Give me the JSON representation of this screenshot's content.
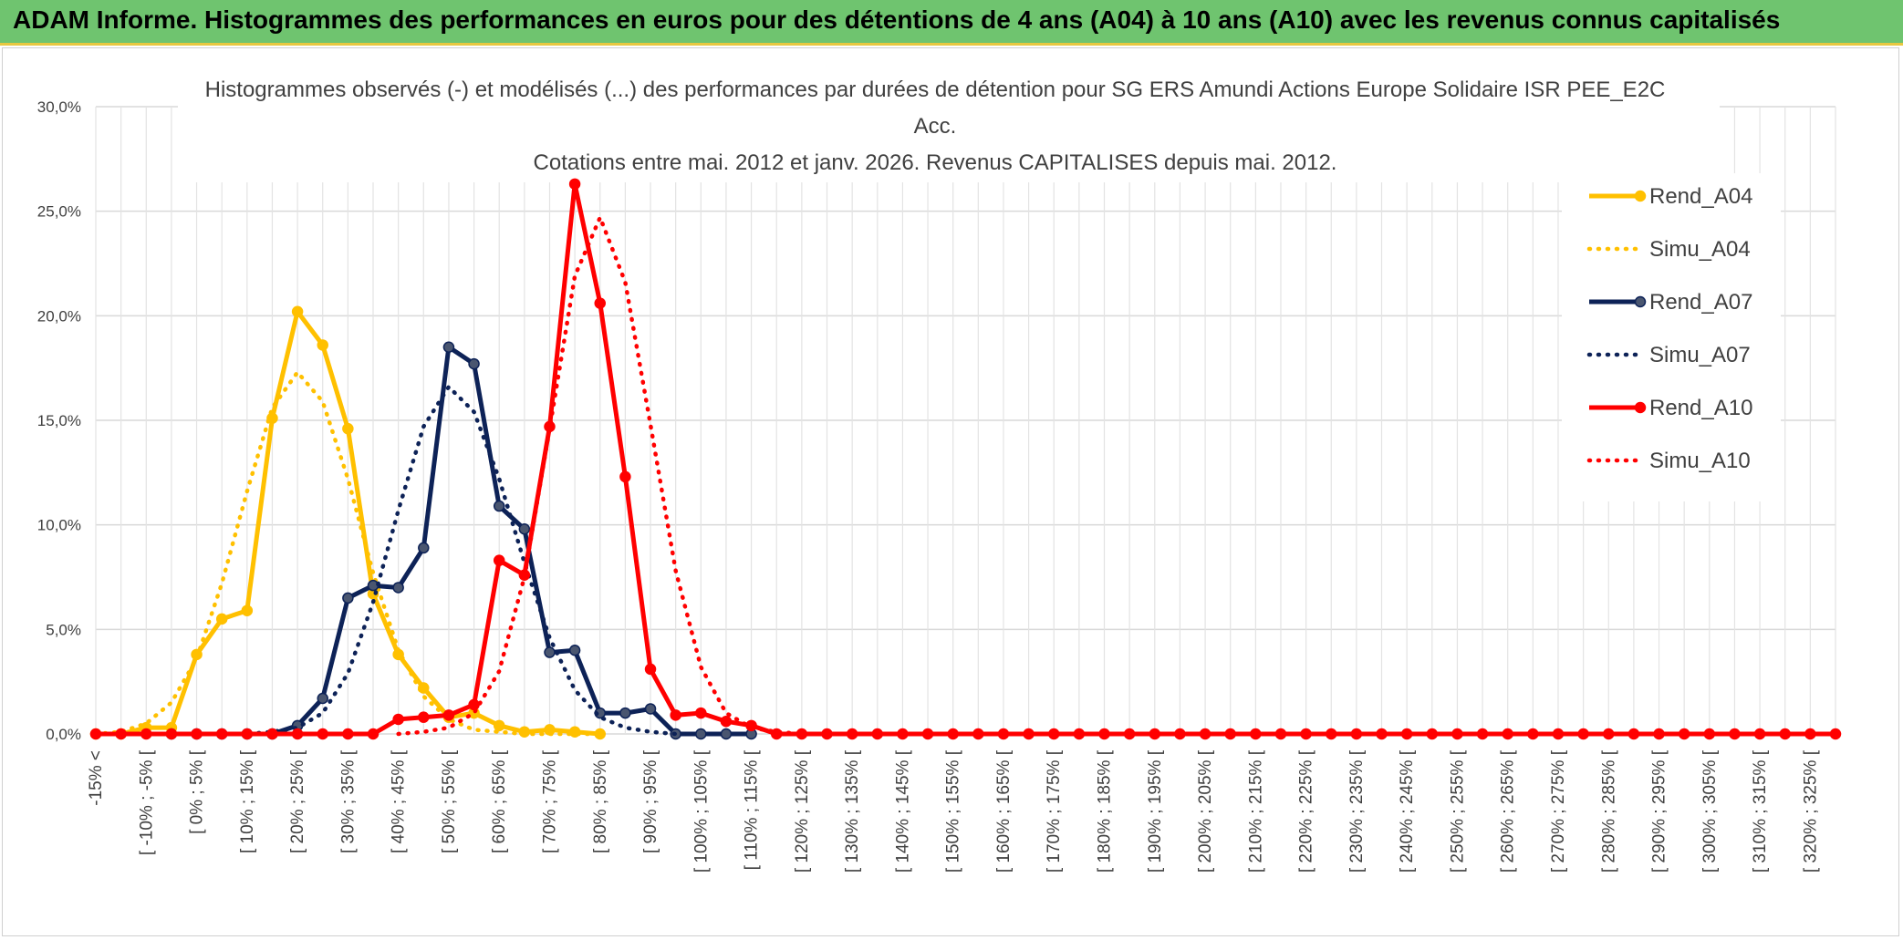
{
  "header": {
    "title": "ADAM Informe. Histogrammes des performances en euros pour des détentions de 4 ans (A04) à 10 ans (A10) avec les revenus connus capitalisés"
  },
  "chart_data": {
    "type": "line",
    "title_lines": [
      "Histogrammes observés (-) et modélisés (...) des performances par durées de détention pour SG ERS Amundi Actions Europe Solidaire ISR PEE_E2C",
      "Acc.",
      "Cotations entre mai. 2012 et janv. 2026. Revenus CAPITALISES depuis mai. 2012."
    ],
    "xlabel": "",
    "ylabel": "",
    "ylim": [
      0,
      30
    ],
    "y_ticks": [
      "0,0%",
      "5,0%",
      "10,0%",
      "15,0%",
      "20,0%",
      "25,0%",
      "30,0%"
    ],
    "legend_position": "top-right",
    "category_labels": [
      "-15% <",
      "[ -10% ; -5% [",
      "[ 0% ; 5% [",
      "[ 10% ; 15% [",
      "[ 20% ; 25% [",
      "[ 30% ; 35% [",
      "[ 40% ; 45% [",
      "[ 50% ; 55% [",
      "[ 60% ; 65% [",
      "[ 70% ; 75% [",
      "[ 80% ; 85% [",
      "[ 90% ; 95% [",
      "[ 100% ; 105% [",
      "[ 110% ; 115% [",
      "[ 120% ; 125% [",
      "[ 130% ; 135% [",
      "[ 140% ; 145% [",
      "[ 150% ; 155% [",
      "[ 160% ; 165% [",
      "[ 170% ; 175% [",
      "[ 180% ; 185% [",
      "[ 190% ; 195% [",
      "[ 200% ; 205% [",
      "[ 210% ; 215% [",
      "[ 220% ; 225% [",
      "[ 230% ; 235% [",
      "[ 240% ; 245% [",
      "[ 250% ; 255% [",
      "[ 260% ; 265% [",
      "[ 270% ; 275% [",
      "[ 280% ; 285% [",
      "[ 290% ; 295% [",
      "[ 300% ; 305% [",
      "[ 310% ; 315% [",
      "[ 320% ; 325% ["
    ],
    "x_start": -15,
    "x_step": 5,
    "x_count": 70,
    "series": [
      {
        "name": "Rend_A04",
        "style": "solid",
        "color": "#ffc000",
        "points": [
          [
            -15,
            0
          ],
          [
            -10,
            0
          ],
          [
            -5,
            0.3
          ],
          [
            0,
            0.3
          ],
          [
            5,
            3.8
          ],
          [
            10,
            5.5
          ],
          [
            15,
            5.9
          ],
          [
            20,
            15.1
          ],
          [
            25,
            20.2
          ],
          [
            30,
            18.6
          ],
          [
            35,
            14.6
          ],
          [
            40,
            6.7
          ],
          [
            45,
            3.8
          ],
          [
            50,
            2.2
          ],
          [
            55,
            0.8
          ],
          [
            60,
            1.0
          ],
          [
            65,
            0.4
          ],
          [
            70,
            0.1
          ],
          [
            75,
            0.2
          ],
          [
            80,
            0.1
          ],
          [
            85,
            0
          ]
        ]
      },
      {
        "name": "Simu_A04",
        "style": "dotted",
        "color": "#ffc000",
        "points": [
          [
            -15,
            0
          ],
          [
            -10,
            0.1
          ],
          [
            -5,
            0.5
          ],
          [
            0,
            1.5
          ],
          [
            5,
            3.6
          ],
          [
            10,
            7.2
          ],
          [
            15,
            11.6
          ],
          [
            20,
            15.6
          ],
          [
            25,
            17.3
          ],
          [
            30,
            15.9
          ],
          [
            35,
            12.2
          ],
          [
            40,
            7.7
          ],
          [
            45,
            4.0
          ],
          [
            50,
            1.8
          ],
          [
            55,
            0.7
          ],
          [
            60,
            0.2
          ],
          [
            65,
            0.1
          ],
          [
            70,
            0
          ],
          [
            75,
            0
          ],
          [
            80,
            0
          ],
          [
            85,
            0
          ]
        ]
      },
      {
        "name": "Rend_A07",
        "style": "solid",
        "color": "#0d2257",
        "points": [
          [
            0,
            0
          ],
          [
            5,
            0
          ],
          [
            10,
            0
          ],
          [
            15,
            0
          ],
          [
            20,
            0
          ],
          [
            25,
            0.4
          ],
          [
            30,
            1.7
          ],
          [
            35,
            6.5
          ],
          [
            40,
            7.1
          ],
          [
            45,
            7.0
          ],
          [
            50,
            8.9
          ],
          [
            55,
            18.5
          ],
          [
            60,
            17.7
          ],
          [
            65,
            10.9
          ],
          [
            70,
            9.8
          ],
          [
            75,
            3.9
          ],
          [
            80,
            4.0
          ],
          [
            85,
            1.0
          ],
          [
            90,
            1.0
          ],
          [
            95,
            1.2
          ],
          [
            100,
            0
          ],
          [
            105,
            0
          ],
          [
            110,
            0
          ],
          [
            115,
            0
          ]
        ]
      },
      {
        "name": "Simu_A07",
        "style": "dotted",
        "color": "#0d2257",
        "points": [
          [
            10,
            0
          ],
          [
            15,
            0
          ],
          [
            20,
            0.1
          ],
          [
            25,
            0.3
          ],
          [
            30,
            1.0
          ],
          [
            35,
            2.9
          ],
          [
            40,
            6.3
          ],
          [
            45,
            10.7
          ],
          [
            50,
            14.7
          ],
          [
            55,
            16.6
          ],
          [
            60,
            15.4
          ],
          [
            65,
            12.2
          ],
          [
            70,
            8.2
          ],
          [
            75,
            4.6
          ],
          [
            80,
            2.1
          ],
          [
            85,
            0.8
          ],
          [
            90,
            0.3
          ],
          [
            95,
            0.1
          ],
          [
            100,
            0
          ],
          [
            105,
            0
          ]
        ]
      },
      {
        "name": "Rend_A10",
        "style": "solid",
        "color": "#ff0000",
        "points": [
          [
            -15,
            0
          ],
          [
            -10,
            0
          ],
          [
            -5,
            0
          ],
          [
            0,
            0
          ],
          [
            5,
            0
          ],
          [
            10,
            0
          ],
          [
            15,
            0
          ],
          [
            20,
            0
          ],
          [
            25,
            0
          ],
          [
            30,
            0
          ],
          [
            35,
            0
          ],
          [
            40,
            0
          ],
          [
            45,
            0.7
          ],
          [
            50,
            0.8
          ],
          [
            55,
            0.9
          ],
          [
            60,
            1.4
          ],
          [
            65,
            8.3
          ],
          [
            70,
            7.6
          ],
          [
            75,
            14.7
          ],
          [
            80,
            26.3
          ],
          [
            85,
            20.6
          ],
          [
            90,
            12.3
          ],
          [
            95,
            3.1
          ],
          [
            100,
            0.9
          ],
          [
            105,
            1.0
          ],
          [
            110,
            0.6
          ],
          [
            115,
            0.4
          ],
          [
            120,
            0
          ],
          [
            125,
            0
          ],
          [
            130,
            0
          ],
          [
            135,
            0
          ],
          [
            140,
            0
          ],
          [
            145,
            0
          ],
          [
            150,
            0
          ],
          [
            155,
            0
          ],
          [
            160,
            0
          ],
          [
            165,
            0
          ],
          [
            170,
            0
          ],
          [
            175,
            0
          ],
          [
            180,
            0
          ],
          [
            185,
            0
          ],
          [
            190,
            0
          ],
          [
            195,
            0
          ],
          [
            200,
            0
          ],
          [
            205,
            0
          ],
          [
            210,
            0
          ],
          [
            215,
            0
          ],
          [
            220,
            0
          ],
          [
            225,
            0
          ],
          [
            230,
            0
          ],
          [
            235,
            0
          ],
          [
            240,
            0
          ],
          [
            245,
            0
          ],
          [
            250,
            0
          ],
          [
            255,
            0
          ],
          [
            260,
            0
          ],
          [
            265,
            0
          ],
          [
            270,
            0
          ],
          [
            275,
            0
          ],
          [
            280,
            0
          ],
          [
            285,
            0
          ],
          [
            290,
            0
          ],
          [
            295,
            0
          ],
          [
            300,
            0
          ],
          [
            305,
            0
          ],
          [
            310,
            0
          ],
          [
            315,
            0
          ],
          [
            320,
            0
          ],
          [
            325,
            0
          ],
          [
            330,
            0
          ]
        ]
      },
      {
        "name": "Simu_A10",
        "style": "dotted",
        "color": "#ff0000",
        "points": [
          [
            45,
            0
          ],
          [
            50,
            0.1
          ],
          [
            55,
            0.3
          ],
          [
            60,
            1.0
          ],
          [
            65,
            3.0
          ],
          [
            70,
            7.5
          ],
          [
            75,
            14.6
          ],
          [
            80,
            21.9
          ],
          [
            85,
            24.7
          ],
          [
            90,
            21.6
          ],
          [
            95,
            14.8
          ],
          [
            100,
            7.8
          ],
          [
            105,
            3.2
          ],
          [
            110,
            1.0
          ],
          [
            115,
            0.3
          ],
          [
            120,
            0.1
          ],
          [
            125,
            0
          ]
        ]
      }
    ]
  }
}
